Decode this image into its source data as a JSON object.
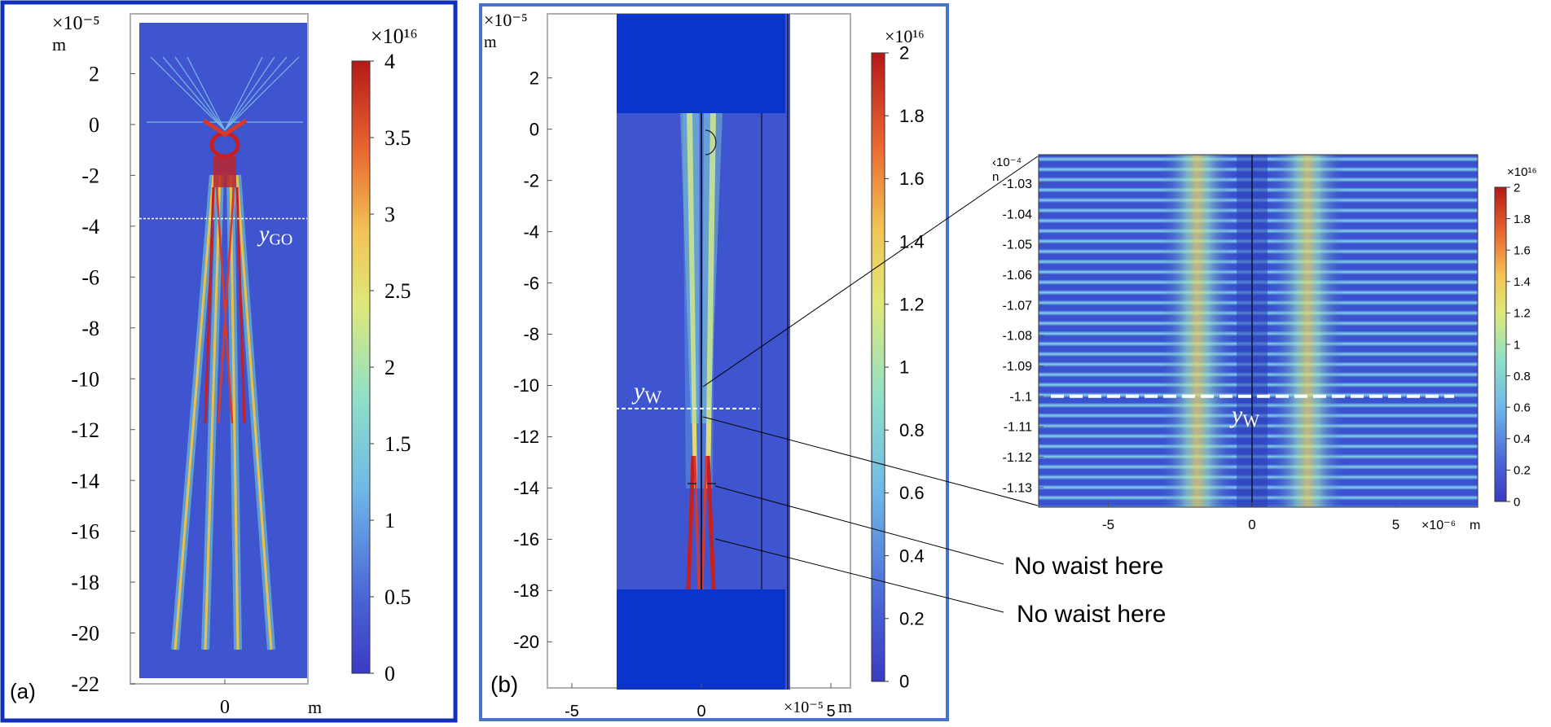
{
  "chart_data": [
    {
      "type": "heatmap",
      "panel_label": "(a)",
      "x_unit_label": "m",
      "y_unit_label": "m",
      "y_multiplier": "×10⁻⁵",
      "x_ticks": [
        {
          "v": 0,
          "label": "0"
        }
      ],
      "y_ticks": [
        {
          "v": 2,
          "label": "2"
        },
        {
          "v": 0,
          "label": "0"
        },
        {
          "v": -2,
          "label": "-2"
        },
        {
          "v": -4,
          "label": "-4"
        },
        {
          "v": -6,
          "label": "-6"
        },
        {
          "v": -8,
          "label": "-8"
        },
        {
          "v": -10,
          "label": "-10"
        },
        {
          "v": -12,
          "label": "-12"
        },
        {
          "v": -14,
          "label": "-14"
        },
        {
          "v": -16,
          "label": "-16"
        },
        {
          "v": -18,
          "label": "-18"
        },
        {
          "v": -20,
          "label": "-20"
        },
        {
          "v": -22,
          "label": "-22"
        }
      ],
      "ylim": [
        -22,
        4
      ],
      "marker_line": {
        "y": -3.7,
        "label_main": "y",
        "label_sub": "GO"
      },
      "colorbar": {
        "multiplier": "×10¹⁶",
        "range": [
          0,
          4
        ],
        "ticks": [
          {
            "v": 4,
            "label": "4"
          },
          {
            "v": 3.5,
            "label": "3.5"
          },
          {
            "v": 3,
            "label": "3"
          },
          {
            "v": 2.5,
            "label": "2.5"
          },
          {
            "v": 2,
            "label": "2"
          },
          {
            "v": 1.5,
            "label": "1.5"
          },
          {
            "v": 1,
            "label": "1"
          },
          {
            "v": 0.5,
            "label": "0.5"
          },
          {
            "v": 0,
            "label": "0"
          }
        ]
      }
    },
    {
      "type": "heatmap",
      "panel_label": "(b)",
      "x_unit_label": "m",
      "y_unit_label": "m",
      "x_multiplier": "×10⁻⁵",
      "y_multiplier": "×10⁻⁵",
      "x_ticks": [
        {
          "v": -5,
          "label": "-5"
        },
        {
          "v": 0,
          "label": "0"
        },
        {
          "v": 5,
          "label": "5"
        }
      ],
      "y_ticks": [
        {
          "v": 2,
          "label": "2"
        },
        {
          "v": 0,
          "label": "0"
        },
        {
          "v": -2,
          "label": "-2"
        },
        {
          "v": -4,
          "label": "-4"
        },
        {
          "v": -6,
          "label": "-6"
        },
        {
          "v": -8,
          "label": "-8"
        },
        {
          "v": -10,
          "label": "-10"
        },
        {
          "v": -12,
          "label": "-12"
        },
        {
          "v": -14,
          "label": "-14"
        },
        {
          "v": -16,
          "label": "-16"
        },
        {
          "v": -18,
          "label": "-18"
        },
        {
          "v": -20,
          "label": "-20"
        }
      ],
      "xlim": [
        -6.5,
        6
      ],
      "ylim": [
        -21.8,
        4.5
      ],
      "marker_line": {
        "y": -10.9,
        "label_main": "y",
        "label_sub": "W"
      },
      "annotations": [
        "No waist here",
        "No waist here"
      ],
      "colorbar": {
        "multiplier": "×10¹⁶",
        "range": [
          0,
          2
        ],
        "ticks": [
          {
            "v": 2,
            "label": "2"
          },
          {
            "v": 1.8,
            "label": "1.8"
          },
          {
            "v": 1.6,
            "label": "1.6"
          },
          {
            "v": 1.4,
            "label": "1.4"
          },
          {
            "v": 1.2,
            "label": "1.2"
          },
          {
            "v": 1,
            "label": "1"
          },
          {
            "v": 0.8,
            "label": "0.8"
          },
          {
            "v": 0.6,
            "label": "0.6"
          },
          {
            "v": 0.4,
            "label": "0.4"
          },
          {
            "v": 0.2,
            "label": "0.2"
          },
          {
            "v": 0,
            "label": "0"
          }
        ]
      }
    },
    {
      "type": "heatmap",
      "panel_label": "",
      "x_unit_label": "m",
      "y_unit_label": "n",
      "x_multiplier": "×10⁻⁶",
      "y_multiplier": "‹10⁻⁴",
      "x_ticks": [
        {
          "v": -5,
          "label": "-5"
        },
        {
          "v": 0,
          "label": "0"
        },
        {
          "v": 5,
          "label": "5"
        }
      ],
      "y_ticks": [
        {
          "v": -1.03,
          "label": "-1.03"
        },
        {
          "v": -1.04,
          "label": "-1.04"
        },
        {
          "v": -1.05,
          "label": "-1.05"
        },
        {
          "v": -1.06,
          "label": "-1.06"
        },
        {
          "v": -1.07,
          "label": "-1.07"
        },
        {
          "v": -1.08,
          "label": "-1.08"
        },
        {
          "v": -1.09,
          "label": "-1.09"
        },
        {
          "v": -1.1,
          "label": "-1.1"
        },
        {
          "v": -1.11,
          "label": "-1.11"
        },
        {
          "v": -1.12,
          "label": "-1.12"
        },
        {
          "v": -1.13,
          "label": "-1.13"
        }
      ],
      "xlim": [
        -7.3,
        7.7
      ],
      "ylim": [
        -1.1365,
        -1.0205
      ],
      "marker_line": {
        "y": -1.1,
        "label_main": "y",
        "label_sub": "W"
      },
      "colorbar": {
        "multiplier": "×10¹⁶",
        "range": [
          0,
          2
        ],
        "ticks": [
          {
            "v": 2,
            "label": "2"
          },
          {
            "v": 1.8,
            "label": "1.8"
          },
          {
            "v": 1.6,
            "label": "1.6"
          },
          {
            "v": 1.4,
            "label": "1.4"
          },
          {
            "v": 1.2,
            "label": "1.2"
          },
          {
            "v": 1,
            "label": "1"
          },
          {
            "v": 0.8,
            "label": "0.8"
          },
          {
            "v": 0.6,
            "label": "0.6"
          },
          {
            "v": 0.4,
            "label": "0.4"
          },
          {
            "v": 0.2,
            "label": "0.2"
          },
          {
            "v": 0,
            "label": "0"
          }
        ]
      }
    }
  ]
}
